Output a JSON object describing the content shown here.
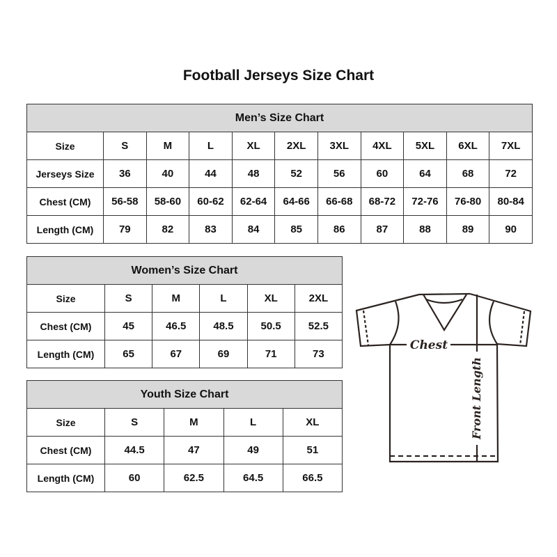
{
  "title": "Football Jerseys Size Chart",
  "men": {
    "heading": "Men’s Size Chart",
    "rows": [
      [
        "Size",
        "S",
        "M",
        "L",
        "XL",
        "2XL",
        "3XL",
        "4XL",
        "5XL",
        "6XL",
        "7XL"
      ],
      [
        "Jerseys Size",
        "36",
        "40",
        "44",
        "48",
        "52",
        "56",
        "60",
        "64",
        "68",
        "72"
      ],
      [
        "Chest (CM)",
        "56-58",
        "58-60",
        "60-62",
        "62-64",
        "64-66",
        "66-68",
        "68-72",
        "72-76",
        "76-80",
        "80-84"
      ],
      [
        "Length (CM)",
        "79",
        "82",
        "83",
        "84",
        "85",
        "86",
        "87",
        "88",
        "89",
        "90"
      ]
    ]
  },
  "women": {
    "heading": "Women’s Size Chart",
    "rows": [
      [
        "Size",
        "S",
        "M",
        "L",
        "XL",
        "2XL"
      ],
      [
        "Chest (CM)",
        "45",
        "46.5",
        "48.5",
        "50.5",
        "52.5"
      ],
      [
        "Length (CM)",
        "65",
        "67",
        "69",
        "71",
        "73"
      ]
    ]
  },
  "youth": {
    "heading": "Youth Size Chart",
    "rows": [
      [
        "Size",
        "S",
        "M",
        "L",
        "XL"
      ],
      [
        "Chest (CM)",
        "44.5",
        "47",
        "49",
        "51"
      ],
      [
        "Length (CM)",
        "60",
        "62.5",
        "64.5",
        "66.5"
      ]
    ]
  },
  "diagram": {
    "chest_label": "Chest",
    "length_label": "Front Length",
    "line_color": "#2b2320"
  }
}
